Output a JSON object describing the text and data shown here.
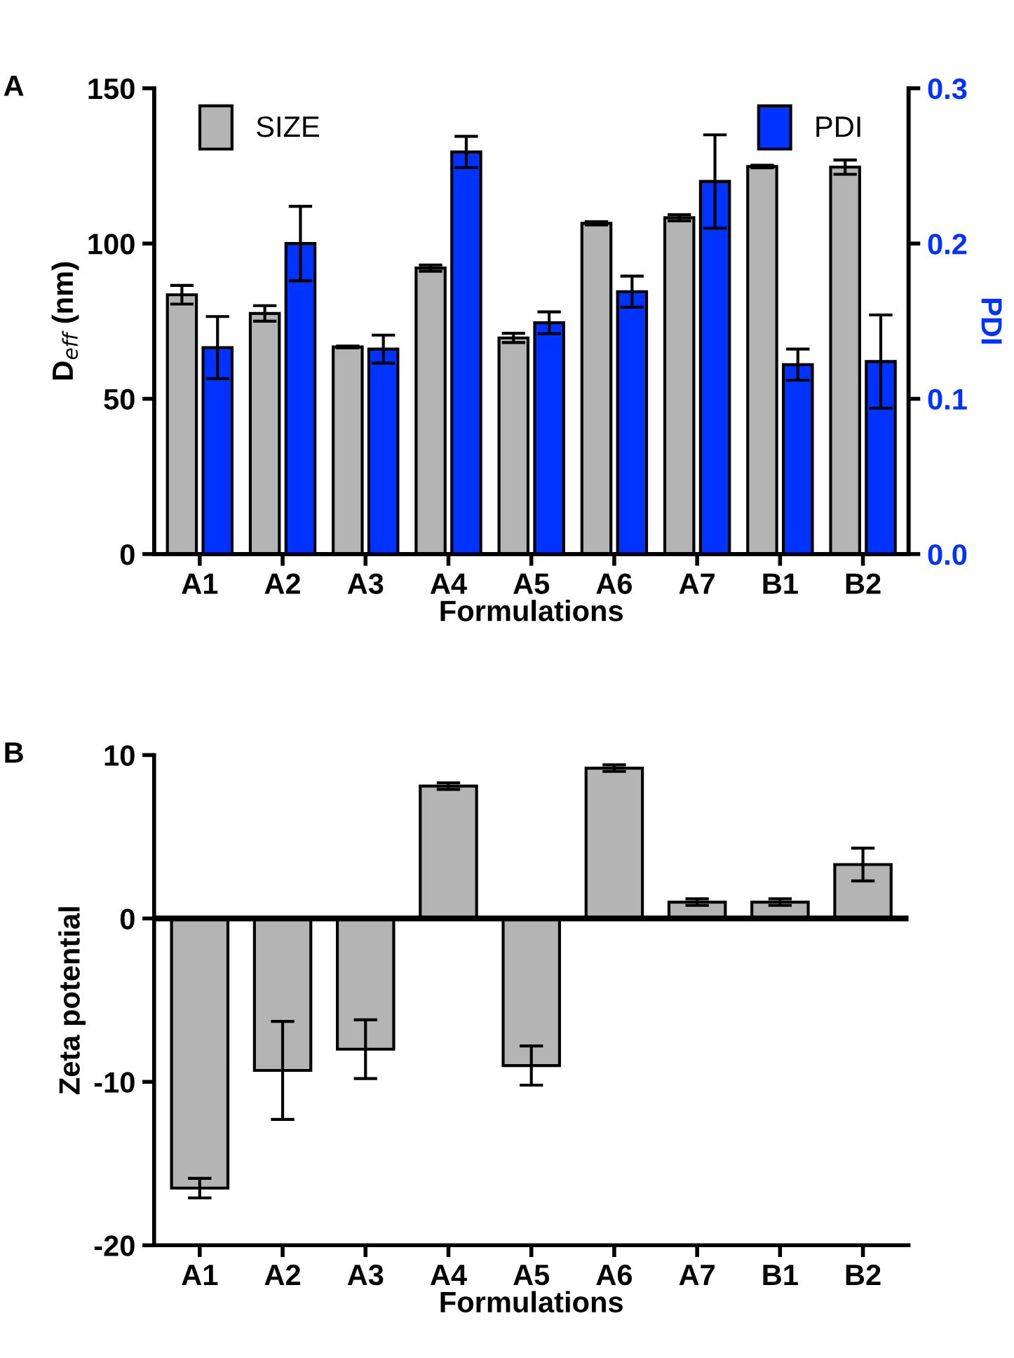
{
  "chart_data": [
    {
      "type": "bar",
      "categories": [
        "A1",
        "A2",
        "A3",
        "A4",
        "A5",
        "A6",
        "A7",
        "B1",
        "B2"
      ],
      "xlabel": "Formulations",
      "ylabel": "D$_{eff}$ (nm)",
      "y2label": "PDI",
      "series": [
        {
          "name": "SIZE",
          "color": "#b4b4b4",
          "values": [
            83.5,
            77.5,
            66.7,
            92.1,
            69.6,
            106.5,
            108.3,
            124.8,
            124.6
          ],
          "errors": [
            3,
            2.5,
            0.3,
            1,
            1.5,
            0.5,
            1,
            0.4,
            2.3
          ]
        },
        {
          "name": "PDI",
          "color": "#0033ff",
          "axis": "y2",
          "values": [
            0.133,
            0.2,
            0.132,
            0.259,
            0.149,
            0.169,
            0.24,
            0.122,
            0.124
          ],
          "errors": [
            0.02,
            0.024,
            0.009,
            0.01,
            0.007,
            0.01,
            0.03,
            0.01,
            0.03
          ]
        }
      ],
      "ylim": [
        0,
        150
      ],
      "yticks": [
        0,
        50,
        100,
        150
      ],
      "y2lim": [
        0,
        0.3
      ],
      "y2ticks": [
        {
          "value": 0,
          "label": "0.0"
        },
        0.1,
        0.2,
        0.3
      ],
      "legend": "top",
      "grid": false,
      "annotations": [
        "A"
      ]
    },
    {
      "type": "bar",
      "categories": [
        "A1",
        "A2",
        "A3",
        "A4",
        "A5",
        "A6",
        "A7",
        "B1",
        "B2"
      ],
      "xlabel": "Formulations",
      "ylabel": "Zeta potential",
      "series": [
        {
          "color": "#b4b4b4",
          "values": [
            -16.5,
            -9.3,
            -8.0,
            8.1,
            -9.0,
            9.2,
            1.0,
            1.0,
            3.3
          ],
          "errors": [
            0.6,
            3,
            1.8,
            0.2,
            1.2,
            0.2,
            0.2,
            0.2,
            1.0
          ]
        }
      ],
      "ylim": [
        -20,
        10
      ],
      "yticks": [
        -20,
        -10,
        0,
        10
      ],
      "ref_lines": [
        {
          "axis": "y",
          "value": 0,
          "color": "#000000"
        }
      ],
      "legend": false,
      "grid": false,
      "annotations": [
        "B"
      ]
    }
  ]
}
